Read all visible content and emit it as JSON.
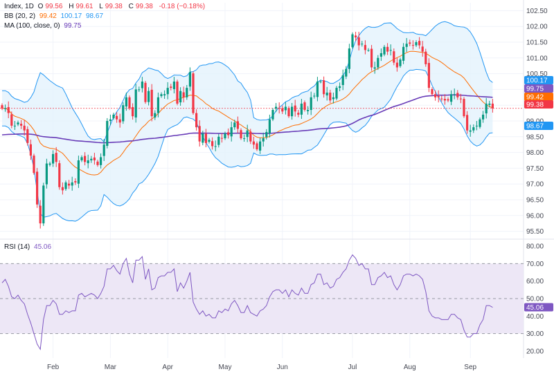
{
  "legend": {
    "main": {
      "symbol": "Index, 1D",
      "o_label": "O",
      "o": "99.56",
      "h_label": "H",
      "h": "99.61",
      "l_label": "L",
      "l": "99.38",
      "c_label": "C",
      "c": "99.38",
      "chg": "-0.18 (−0.18%)"
    },
    "bb": {
      "label": "BB (20, 2)",
      "basis": "99.42",
      "upper": "100.17",
      "lower": "98.67"
    },
    "ma": {
      "label": "MA (100, close, 0)",
      "value": "99.75"
    },
    "rsi": {
      "label": "RSI (14)",
      "value": "45.06"
    }
  },
  "price_tags": [
    {
      "value": "100.17",
      "color": "#2196f3"
    },
    {
      "value": "99.75",
      "color": "#7e57c2"
    },
    {
      "value": "99.42",
      "color": "#ff6d00"
    },
    {
      "value": "99.38",
      "color": "#f23645"
    },
    {
      "value": "98.67",
      "color": "#2196f3"
    }
  ],
  "rsi_tag": {
    "value": "45.06",
    "color": "#7e57c2"
  },
  "colors": {
    "up": "#089981",
    "down": "#f23645",
    "bb_line": "#2196f3",
    "bb_basis": "#ff6d00",
    "bb_fill": "#e3f2fd",
    "ma": "#673ab7",
    "rsi": "#7e57c2",
    "rsi_band": "#ede7f6",
    "grid": "#f0f3fa"
  },
  "chart_data": [
    {
      "type": "candlestick",
      "title": "Index, 1D",
      "ylim": [
        95.25,
        102.75
      ],
      "y_ticks": [
        "95.50",
        "96.00",
        "96.50",
        "97.00",
        "97.50",
        "98.00",
        "98.50",
        "99.00",
        "99.50",
        "100.00",
        "100.50",
        "101.00",
        "101.50",
        "102.00",
        "102.50"
      ],
      "x_ticks": [
        "Feb",
        "Mar",
        "Apr",
        "May",
        "Jun",
        "Jul",
        "Aug",
        "Sep"
      ],
      "close": [
        99.4,
        99.4,
        99.25,
        98.85,
        98.85,
        98.95,
        98.85,
        98.7,
        98.3,
        97.9,
        97.35,
        96.35,
        95.75,
        96.95,
        97.65,
        97.65,
        97.95,
        97.7,
        96.9,
        96.8,
        97.05,
        96.95,
        97.05,
        97.05,
        97.75,
        97.85,
        97.7,
        97.75,
        97.8,
        97.75,
        97.6,
        97.85,
        98.25,
        99.0,
        99.05,
        99.2,
        99.05,
        98.95,
        99.5,
        99.75,
        99.4,
        99.15,
        100.0,
        100.0,
        100.25,
        99.6,
        99.95,
        99.15,
        99.25,
        99.75,
        99.85,
        99.85,
        100.05,
        100.05,
        100.25,
        99.55,
        99.95,
        99.75,
        100.05,
        100.55,
        99.25,
        98.8,
        98.35,
        98.6,
        98.3,
        98.4,
        98.2,
        98.2,
        98.5,
        98.45,
        98.6,
        98.55,
        98.8,
        98.95,
        98.75,
        98.45,
        98.45,
        98.7,
        98.35,
        98.25,
        98.1,
        98.35,
        98.45,
        98.65,
        99.05,
        99.35,
        99.45,
        99.4,
        99.3,
        99.45,
        99.15,
        99.45,
        99.3,
        99.2,
        99.55,
        99.35,
        99.35,
        99.75,
        99.8,
        100.25,
        100.25,
        99.85,
        99.9,
        99.65,
        99.75,
        100.05,
        100.1,
        100.45,
        100.65,
        101.3,
        101.75,
        101.65,
        101.4,
        101.45,
        101.25,
        101.25,
        100.7,
        100.7,
        101.0,
        101.15,
        101.35,
        101.2,
        101.25,
        100.85,
        100.7,
        100.95,
        101.35,
        101.45,
        101.45,
        101.4,
        101.5,
        101.4,
        101.2,
        100.8,
        100.05,
        99.85,
        99.75,
        99.75,
        99.7,
        99.65,
        99.65,
        99.85,
        99.85,
        99.75,
        99.7,
        99.15,
        98.7,
        98.7,
        98.8,
        98.85,
        99.05,
        99.2,
        99.55,
        99.55,
        99.4
      ]
    },
    {
      "type": "line",
      "title": "RSI (14)",
      "ylim": [
        16,
        84
      ],
      "y_ticks": [
        "20.00",
        "30.00",
        "40.00",
        "50.00",
        "60.00",
        "70.00",
        "80.00"
      ],
      "bands": [
        30,
        50,
        70
      ],
      "values": [
        59,
        61,
        57,
        51,
        50,
        52,
        49,
        47,
        41,
        36,
        30,
        24,
        21,
        38,
        46,
        46,
        49,
        47,
        41,
        41,
        43,
        42,
        43,
        43,
        52,
        53,
        51,
        52,
        53,
        52,
        50,
        53,
        57,
        67,
        67,
        69,
        66,
        64,
        70,
        73,
        64,
        59,
        72,
        72,
        74,
        61,
        67,
        55,
        56,
        62,
        63,
        63,
        65,
        65,
        67,
        54,
        59,
        56,
        60,
        65,
        48,
        44,
        41,
        43,
        40,
        41,
        39,
        39,
        43,
        42,
        44,
        43,
        47,
        49,
        46,
        42,
        42,
        46,
        42,
        41,
        40,
        43,
        44,
        46,
        51,
        54,
        55,
        55,
        53,
        55,
        51,
        55,
        53,
        52,
        56,
        53,
        53,
        58,
        59,
        64,
        64,
        58,
        59,
        56,
        57,
        61,
        62,
        65,
        67,
        72,
        75,
        73,
        69,
        70,
        67,
        67,
        58,
        58,
        62,
        63,
        65,
        62,
        63,
        58,
        55,
        58,
        63,
        64,
        64,
        63,
        64,
        63,
        61,
        54,
        43,
        40,
        39,
        39,
        38,
        38,
        38,
        41,
        41,
        39,
        38,
        32,
        28,
        28,
        30,
        30,
        35,
        38,
        46,
        46,
        45
      ]
    }
  ]
}
